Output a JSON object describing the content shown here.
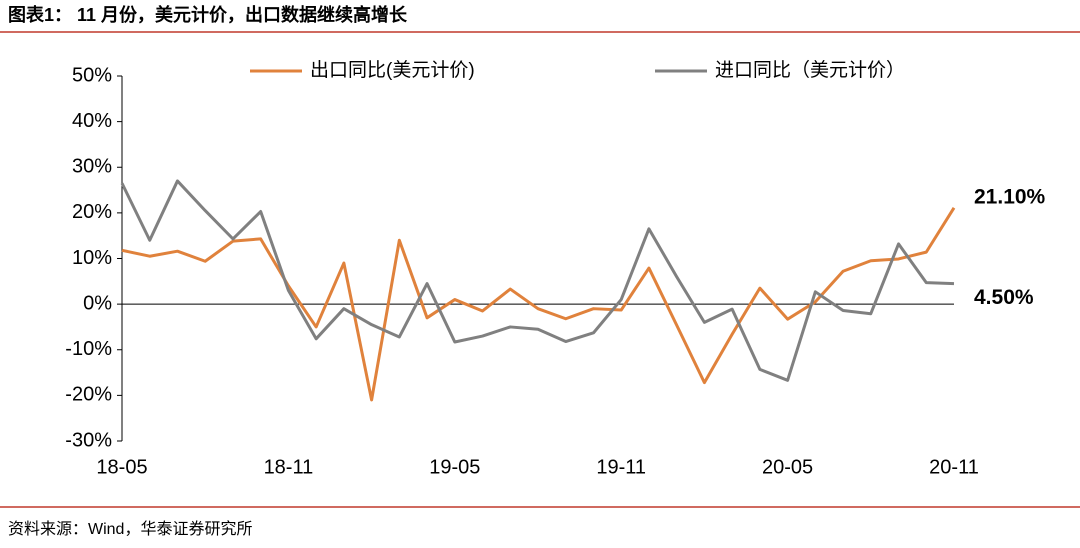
{
  "chart_data": {
    "type": "line",
    "title": "图表1：  11 月份，美元计价，出口数据继续高增长",
    "source": "资料来源：Wind，华泰证券研究所",
    "categories": [
      "18-05",
      null,
      null,
      null,
      null,
      null,
      "18-11",
      null,
      null,
      null,
      null,
      null,
      "19-05",
      null,
      null,
      null,
      null,
      null,
      "19-11",
      null,
      null,
      null,
      null,
      null,
      "20-05",
      null,
      null,
      null,
      null,
      null,
      "20-11"
    ],
    "series": [
      {
        "name": "出口同比(美元计价)",
        "color": "#e0823c",
        "values": [
          11.8,
          10.5,
          11.6,
          9.4,
          13.8,
          14.3,
          4,
          -5,
          9,
          -21,
          14,
          -3,
          1,
          -1.5,
          3.3,
          -1,
          -3.2,
          -1,
          -1.3,
          7.9,
          -4.6,
          -17.2,
          -6.6,
          3.5,
          -3.3,
          0.5,
          7.2,
          9.5,
          9.9,
          11.4,
          21.1
        ],
        "value_labels": [
          null,
          null,
          null,
          null,
          null,
          null,
          null,
          null,
          null,
          null,
          null,
          null,
          null,
          null,
          null,
          null,
          null,
          null,
          null,
          null,
          null,
          null,
          null,
          null,
          null,
          null,
          null,
          null,
          null,
          null,
          "21.10%"
        ]
      },
      {
        "name": "进口同比（美元计价）",
        "color": "#808080",
        "values": [
          26.5,
          14,
          27,
          20.5,
          14.3,
          20.3,
          3,
          -7.6,
          -1,
          -4.5,
          -7.2,
          4.5,
          -8.3,
          -7,
          -5,
          -5.5,
          -8.2,
          -6.3,
          1,
          16.5,
          6,
          -4,
          -1.1,
          -14.3,
          -16.7,
          2.7,
          -1.4,
          -2.1,
          13.2,
          4.7,
          4.5
        ],
        "value_labels": [
          null,
          null,
          null,
          null,
          null,
          null,
          null,
          null,
          null,
          null,
          null,
          null,
          null,
          null,
          null,
          null,
          null,
          null,
          null,
          null,
          null,
          null,
          null,
          null,
          null,
          null,
          null,
          null,
          null,
          null,
          "4.50%"
        ]
      }
    ],
    "ylim": [
      -30,
      50
    ],
    "yticks": [
      {
        "value": -30,
        "label": "-30%"
      },
      {
        "value": -20,
        "label": "-20%"
      },
      {
        "value": -10,
        "label": "-10%"
      },
      {
        "value": 0,
        "label": "0%"
      },
      {
        "value": 10,
        "label": "10%"
      },
      {
        "value": 20,
        "label": "20%"
      },
      {
        "value": 30,
        "label": "30%"
      },
      {
        "value": 40,
        "label": "40%"
      },
      {
        "value": 50,
        "label": "50%"
      }
    ],
    "legend": "top"
  }
}
